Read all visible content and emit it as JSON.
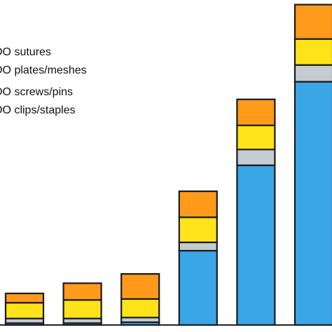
{
  "chart_data": {
    "type": "bar",
    "stacked": true,
    "categories": [
      "",
      "",
      "",
      "",
      "",
      ""
    ],
    "series": [
      {
        "name": "DO clips/staples",
        "color": "#3aa6e6",
        "values": [
          2,
          2,
          3,
          80,
          172,
          262
        ]
      },
      {
        "name": "DO screws/pins",
        "color": "#c4ccd1",
        "values": [
          5,
          5,
          5,
          9,
          17,
          18
        ]
      },
      {
        "name": "DO plates/meshes",
        "color": "#ffe31a",
        "values": [
          17,
          20,
          20,
          27,
          26,
          28
        ]
      },
      {
        "name": "DO sutures",
        "color": "#ff9a1a",
        "values": [
          10,
          18,
          27,
          28,
          28,
          37
        ]
      }
    ],
    "legend": {
      "position": "top-left",
      "order": [
        "DO sutures",
        "DO plates/meshes",
        "DO screws/pins",
        "DO clips/staples"
      ]
    },
    "ylim": [
      0,
      350
    ],
    "grid": false,
    "title": "",
    "xlabel": "",
    "ylabel": ""
  }
}
